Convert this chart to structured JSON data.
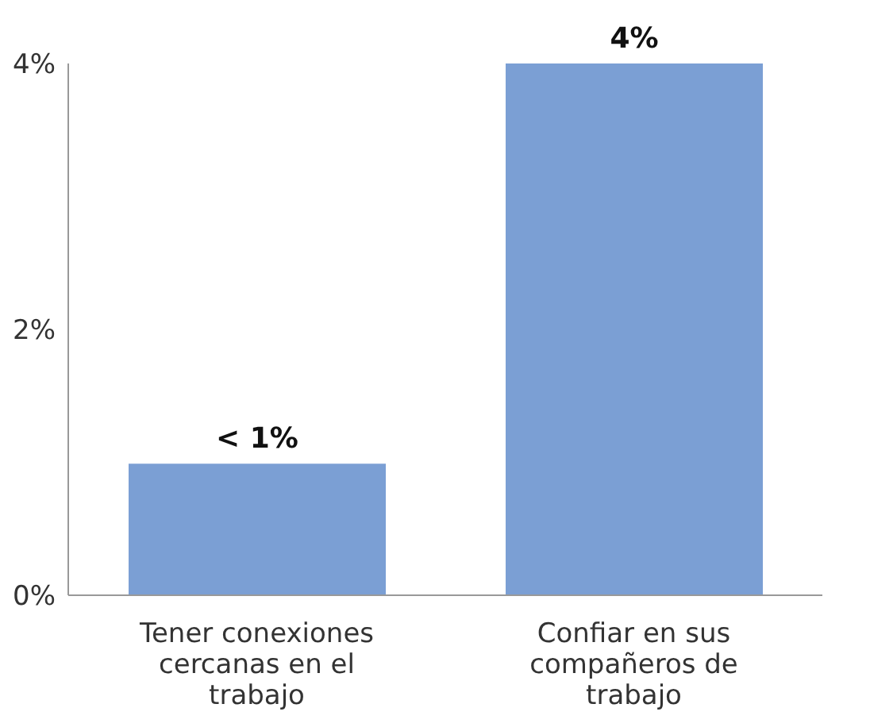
{
  "chart_data": {
    "type": "bar",
    "categories": [
      "Tener conexiones cercanas en el trabajo",
      "Confiar en sus compañeros de trabajo"
    ],
    "values": [
      0.99,
      4
    ],
    "value_labels": [
      "< 1%",
      "4%"
    ],
    "color": "#7b9fd4",
    "ylim": [
      0,
      4
    ],
    "yticks": [
      {
        "value": 0,
        "label": "0%"
      },
      {
        "value": 2,
        "label": "2%"
      },
      {
        "value": 4,
        "label": "4%"
      }
    ],
    "grid": false
  }
}
